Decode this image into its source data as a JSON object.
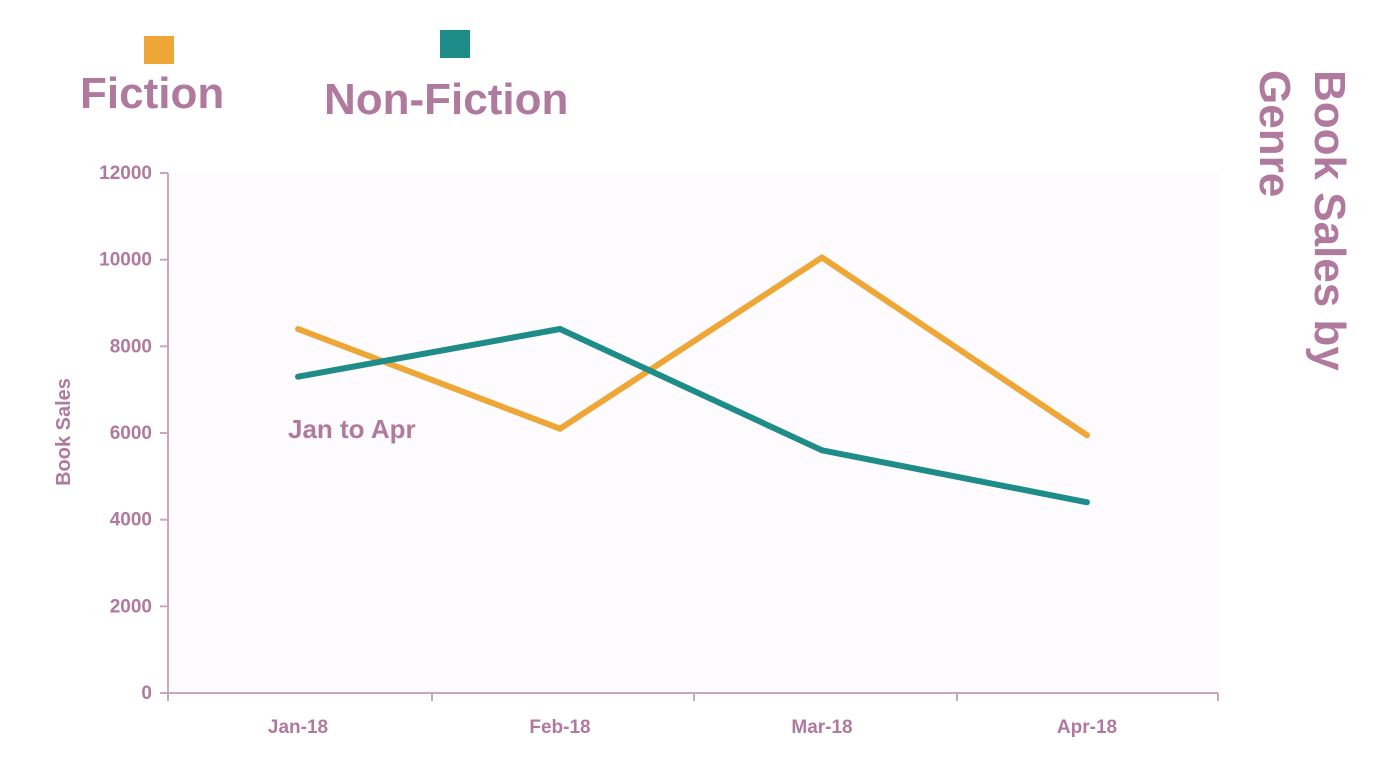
{
  "colors": {
    "text": "#b07a9e",
    "axis": "#c9a8be",
    "fiction": "#eea737",
    "non_fiction": "#1e8c88",
    "plot_background": "#fdfbfd"
  },
  "chart_data": {
    "type": "line",
    "title_lines": [
      "Book Sales by",
      "Genre"
    ],
    "subtitle": "Jan to Apr",
    "xlabel": "",
    "ylabel": "Book Sales",
    "categories": [
      "Jan-18",
      "Feb-18",
      "Mar-18",
      "Apr-18"
    ],
    "yticks": [
      "0",
      "2000",
      "4000",
      "6000",
      "8000",
      "10000",
      "12000"
    ],
    "ylim": [
      0,
      12000
    ],
    "grid": false,
    "legend_position": "top-left",
    "series": [
      {
        "name": "Fiction",
        "values": [
          8400,
          6100,
          10050,
          5950
        ],
        "color": "#eea737"
      },
      {
        "name": "Non-Fiction",
        "values": [
          7300,
          8400,
          5600,
          4400
        ],
        "color": "#1e8c88"
      }
    ]
  }
}
